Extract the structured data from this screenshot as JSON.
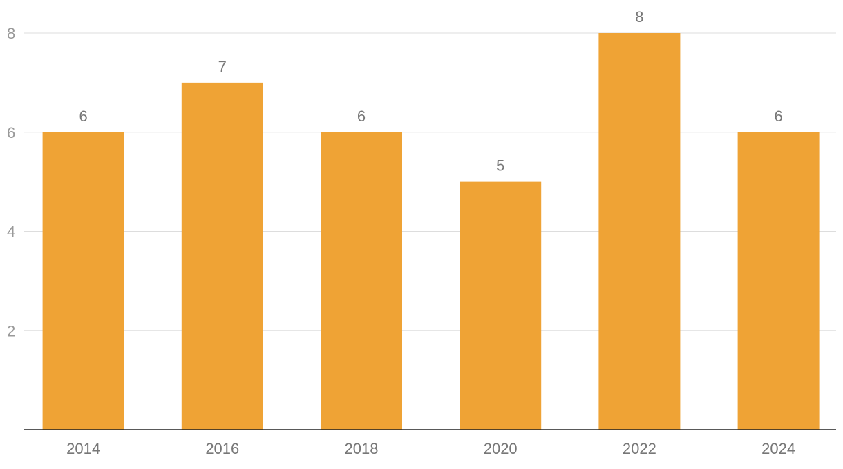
{
  "chart_data": {
    "type": "bar",
    "title": "",
    "xlabel": "",
    "ylabel": "",
    "categories": [
      "2014",
      "2016",
      "2018",
      "2020",
      "2022",
      "2024"
    ],
    "values": [
      6,
      7,
      6,
      5,
      8,
      6
    ],
    "ylim": [
      0,
      8
    ],
    "y_ticks": [
      2,
      4,
      6,
      8
    ],
    "grid": true,
    "legend": "none",
    "data_labels": true,
    "colors": {
      "bar": "#EFA335",
      "grid": "#dddddd",
      "axis": "#222222",
      "tick_label": "#777777"
    }
  }
}
